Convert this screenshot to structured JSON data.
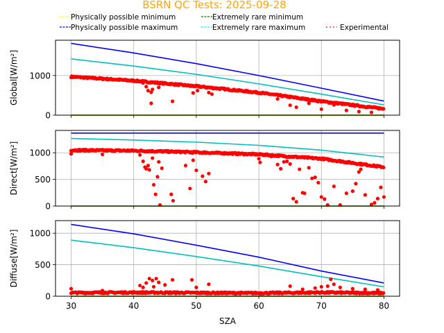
{
  "chart_data": {
    "type": "scatter",
    "title": "BSRN QC Tests: 2025-09-28",
    "xlabel": "SZA",
    "xlim": [
      27.5,
      82.5
    ],
    "xticks": [
      30,
      40,
      50,
      60,
      70,
      80
    ],
    "grid": true,
    "legend": {
      "placement": "top",
      "entries": [
        {
          "label": "Physically possible minimum",
          "color": "#FFFF00",
          "style": "dashed"
        },
        {
          "label": "Physically possible maximum",
          "color": "#0000FF",
          "style": "dashed"
        },
        {
          "label": "Extremely rare minimum",
          "color": "#008000",
          "style": "dashed"
        },
        {
          "label": "Extremely rare maximum",
          "color": "#00FFFF",
          "style": "dashed"
        },
        {
          "label": "Experimental",
          "color": "#FF0000",
          "style": "dotted"
        }
      ]
    },
    "colors": {
      "pp_min": "#FFFF00",
      "pp_max": "#0000FF",
      "er_min": "#008000",
      "er_max": "#00BFBF",
      "experimental": "#FF0000"
    },
    "panels": [
      {
        "ylabel": "Global[W/m²]",
        "ylim": [
          0,
          1890
        ],
        "yticks": [
          0,
          1000
        ],
        "lines": {
          "pp_max": {
            "x": [
              30,
              40,
              50,
              60,
              70,
              80
            ],
            "y": [
              1810,
              1570,
              1300,
              1000,
              680,
              355
            ]
          },
          "er_max": {
            "x": [
              30,
              40,
              50,
              60,
              70,
              80
            ],
            "y": [
              1420,
              1240,
              1030,
              790,
              530,
              260
            ]
          },
          "er_min": {
            "x": [
              30,
              80
            ],
            "y": [
              0,
              0
            ]
          },
          "pp_min": {
            "x": [
              30,
              80
            ],
            "y": [
              -4,
              -4
            ]
          }
        },
        "experimental": {
          "trend": {
            "x": [
              30,
              40,
              50,
              60,
              70,
              80
            ],
            "y": [
              970,
              870,
              730,
              570,
              350,
              160
            ]
          },
          "outliers": [
            [
              41.5,
              810
            ],
            [
              42,
              720
            ],
            [
              42.3,
              620
            ],
            [
              42.8,
              580
            ],
            [
              43,
              650
            ],
            [
              42.8,
              300
            ],
            [
              44,
              700
            ],
            [
              46.2,
              350
            ],
            [
              47,
              780
            ],
            [
              49,
              730
            ],
            [
              49.5,
              560
            ],
            [
              50.2,
              620
            ],
            [
              52,
              570
            ],
            [
              52.5,
              530
            ],
            [
              63,
              410
            ],
            [
              65,
              250
            ],
            [
              66,
              200
            ],
            [
              68,
              300
            ],
            [
              70,
              150
            ],
            [
              72,
              260
            ],
            [
              74,
              120
            ],
            [
              76,
              90
            ],
            [
              78,
              70
            ]
          ]
        }
      },
      {
        "ylabel": "Direct[W/m²]",
        "ylim": [
          0,
          1420
        ],
        "yticks": [
          0,
          500,
          1000
        ],
        "lines": {
          "pp_max": {
            "x": [
              30,
              80
            ],
            "y": [
              1370,
              1370
            ]
          },
          "er_max": {
            "x": [
              30,
              40,
              50,
              60,
              70,
              80
            ],
            "y": [
              1270,
              1240,
              1200,
              1140,
              1050,
              920
            ]
          },
          "er_min": {
            "x": [
              30,
              80
            ],
            "y": [
              0,
              0
            ]
          },
          "pp_min": {
            "x": [
              30,
              80
            ],
            "y": [
              -4,
              -4
            ]
          }
        },
        "experimental": {
          "trend": {
            "x": [
              30,
              40,
              50,
              60,
              70,
              80
            ],
            "y": [
              1050,
              1040,
              1010,
              970,
              890,
              730
            ]
          },
          "outliers": [
            [
              30,
              980
            ],
            [
              35,
              970
            ],
            [
              41,
              960
            ],
            [
              41.5,
              840
            ],
            [
              41.8,
              730
            ],
            [
              42,
              700
            ],
            [
              42.3,
              760
            ],
            [
              42.5,
              680
            ],
            [
              43,
              900
            ],
            [
              43.2,
              400
            ],
            [
              43.5,
              220
            ],
            [
              43.8,
              550
            ],
            [
              44,
              830
            ],
            [
              44.2,
              20
            ],
            [
              44.5,
              710
            ],
            [
              46,
              220
            ],
            [
              46.3,
              100
            ],
            [
              48.3,
              760
            ],
            [
              49,
              330
            ],
            [
              49.2,
              1000
            ],
            [
              49.5,
              860
            ],
            [
              50,
              670
            ],
            [
              51,
              560
            ],
            [
              51.5,
              460
            ],
            [
              52,
              610
            ],
            [
              60,
              890
            ],
            [
              60.2,
              820
            ],
            [
              62,
              930
            ],
            [
              63,
              780
            ],
            [
              63.5,
              700
            ],
            [
              64,
              830
            ],
            [
              64.5,
              840
            ],
            [
              65,
              790
            ],
            [
              65.5,
              140
            ],
            [
              66,
              80
            ],
            [
              66.5,
              690
            ],
            [
              67,
              250
            ],
            [
              67.3,
              240
            ],
            [
              68,
              720
            ],
            [
              68.5,
              520
            ],
            [
              69,
              540
            ],
            [
              69.5,
              440
            ],
            [
              70,
              170
            ],
            [
              70.5,
              130
            ],
            [
              71,
              20
            ],
            [
              72,
              370
            ],
            [
              73,
              20
            ],
            [
              74,
              240
            ],
            [
              75,
              280
            ],
            [
              75.5,
              420
            ],
            [
              76,
              640
            ],
            [
              76.3,
              690
            ],
            [
              77,
              210
            ],
            [
              78,
              30
            ],
            [
              78.5,
              60
            ],
            [
              79,
              140
            ],
            [
              79.5,
              350
            ],
            [
              80,
              170
            ]
          ]
        }
      },
      {
        "ylabel": "Diffuse[W/m²]",
        "ylim": [
          0,
          1200
        ],
        "yticks": [
          0,
          500,
          1000
        ],
        "lines": {
          "pp_max": {
            "x": [
              30,
              40,
              50,
              60,
              70,
              80
            ],
            "y": [
              1140,
              990,
              810,
              620,
              400,
              210
            ]
          },
          "er_max": {
            "x": [
              30,
              40,
              50,
              60,
              70,
              80
            ],
            "y": [
              890,
              770,
              630,
              480,
              310,
              150
            ]
          },
          "er_min": {
            "x": [
              30,
              80
            ],
            "y": [
              0,
              0
            ]
          },
          "pp_min": {
            "x": [
              30,
              80
            ],
            "y": [
              -4,
              -4
            ]
          }
        },
        "experimental": {
          "trend": {
            "x": [
              30,
              40,
              50,
              60,
              70,
              80
            ],
            "y": [
              55,
              60,
              55,
              50,
              60,
              50
            ]
          },
          "outliers": [
            [
              30,
              120
            ],
            [
              35,
              90
            ],
            [
              41,
              170
            ],
            [
              41.5,
              140
            ],
            [
              42,
              210
            ],
            [
              42.5,
              280
            ],
            [
              43,
              250
            ],
            [
              43.2,
              150
            ],
            [
              43.6,
              280
            ],
            [
              44,
              220
            ],
            [
              45,
              180
            ],
            [
              46.2,
              260
            ],
            [
              49.3,
              260
            ],
            [
              50,
              140
            ],
            [
              52,
              190
            ],
            [
              65,
              160
            ],
            [
              67,
              110
            ],
            [
              69,
              130
            ],
            [
              70,
              150
            ],
            [
              71,
              160
            ],
            [
              71.5,
              270
            ],
            [
              72,
              190
            ],
            [
              73,
              140
            ],
            [
              75,
              120
            ],
            [
              77,
              110
            ],
            [
              79,
              100
            ]
          ]
        }
      }
    ]
  }
}
